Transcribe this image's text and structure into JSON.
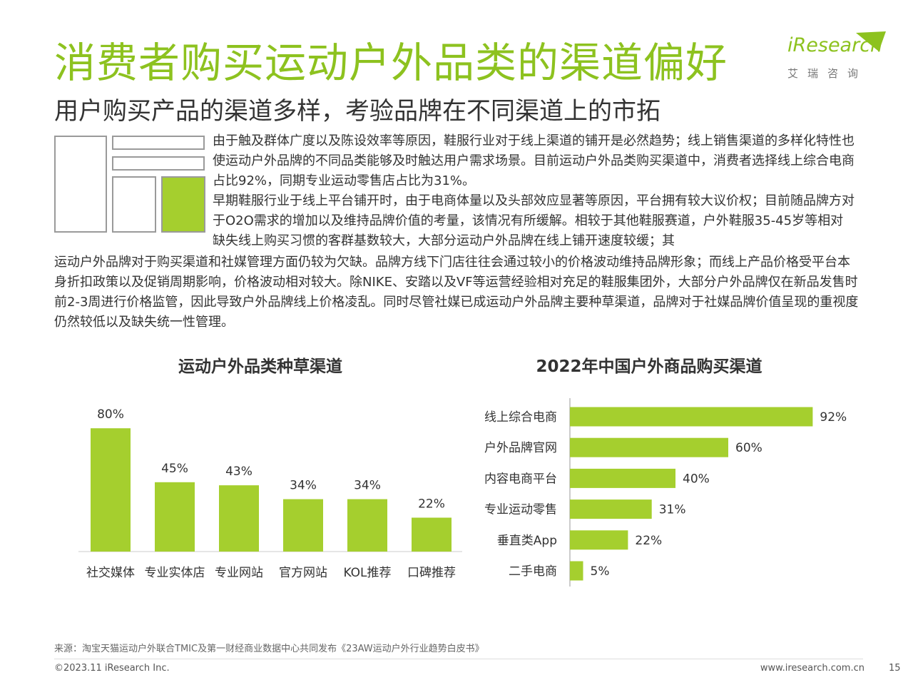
{
  "header": {
    "title": "消费者购买运动户外品类的渠道偏好",
    "subtitle": "用户购买产品的渠道多样，考验品牌在不同渠道上的市拓"
  },
  "logo": {
    "brand": "iResearch",
    "cn": "艾瑞咨询"
  },
  "body": {
    "paragraph1": "由于触及群体广度以及陈设效率等原因，鞋服行业对于线上渠道的铺开是必然趋势；线上销售渠道的多样化特性也使运动户外品牌的不同品类能够及时触达用户需求场景。目前运动户外品类购买渠道中，消费者选择线上综合电商占比92%，同期专业运动零售店占比为31%。",
    "paragraph2_top": "早期鞋服行业于线上平台铺开时，由于电商体量以及头部效应显著等原因，平台拥有较大议价权；目前随品牌方对于O2O需求的增加以及维持品牌价值的考量，该情况有所缓解。相较于其他鞋服赛道，户外鞋服35-45岁等相对缺失线上购买习惯的客群基数较大，大部分运动户外品牌在线上铺开速度较缓；其",
    "paragraph2_bottom": "运动户外品牌对于购买渠道和社媒管理方面仍较为欠缺。品牌方线下门店往往会通过较小的价格波动维持品牌形象；而线上产品价格受平台本身折扣政策以及促销周期影响，价格波动相对较大。除NIKE、安踏以及VF等运营经验相对充足的鞋服集团外，大部分户外品牌仅在新品发售时前2-3周进行价格监管，因此导致户外品牌线上价格凌乱。同时尽管社媒已成运动户外品牌主要种草渠道，品牌对于社媒品牌价值呈现的重视度仍然较低以及缺失统一性管理。"
  },
  "colors": {
    "accent": "#8dc21f",
    "bar": "#a5cf2e",
    "text": "#333333"
  },
  "chart_data": [
    {
      "type": "bar",
      "title": "运动户外品类种草渠道",
      "categories": [
        "社交媒体",
        "专业实体店",
        "专业网站",
        "官方网站",
        "KOL推荐",
        "口碑推荐"
      ],
      "values": [
        80,
        45,
        43,
        34,
        34,
        22
      ],
      "value_labels": [
        "80%",
        "45%",
        "43%",
        "34%",
        "34%",
        "22%"
      ],
      "unit": "%",
      "ylim": [
        0,
        100
      ]
    },
    {
      "type": "bar",
      "orientation": "horizontal",
      "title": "2022年中国户外商品购买渠道",
      "categories": [
        "线上综合电商",
        "户外品牌官网",
        "内容电商平台",
        "专业运动零售",
        "垂直类App",
        "二手电商"
      ],
      "values": [
        92,
        60,
        40,
        31,
        22,
        5
      ],
      "value_labels": [
        "92%",
        "60%",
        "40%",
        "31%",
        "22%",
        "5%"
      ],
      "unit": "%",
      "xlim": [
        0,
        100
      ]
    }
  ],
  "footer": {
    "source": "来源：淘宝天猫运动户外联合TMIC及第一财经商业数据中心共同发布《23AW运动户外行业趋势白皮书》",
    "copyright": "©2023.11 iResearch Inc.",
    "website": "www.iresearch.com.cn",
    "page": "15"
  }
}
